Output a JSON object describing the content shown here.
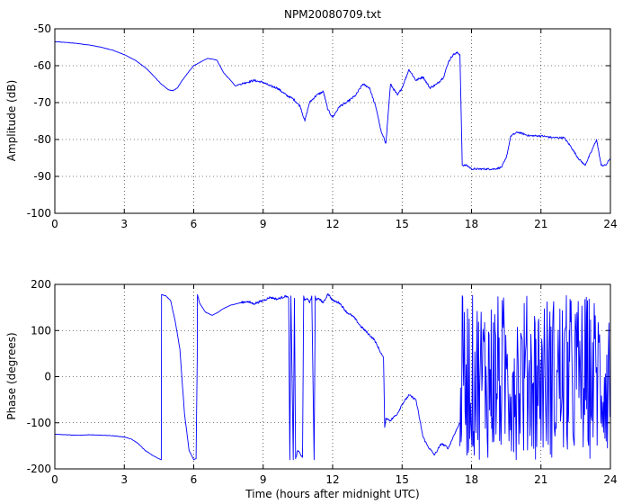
{
  "chart_data": [
    {
      "type": "line",
      "title": "NPM20080709.txt",
      "xlabel": "",
      "ylabel": "Amplitude (dB)",
      "xlim": [
        0,
        24
      ],
      "ylim": [
        -100,
        -50
      ],
      "xticks": [
        0,
        3,
        6,
        9,
        12,
        15,
        18,
        21,
        24
      ],
      "yticks": [
        -100,
        -90,
        -80,
        -70,
        -60,
        -50
      ],
      "grid": true,
      "line_color": "#0000ff",
      "series": [
        {
          "x": [
            0,
            0.5,
            1,
            1.5,
            2,
            2.5,
            3,
            3.5,
            4,
            4.3,
            4.6,
            4.9,
            5.1,
            5.3,
            5.5,
            5.8,
            6.0,
            6.3,
            6.6,
            7.0,
            7.3,
            7.6,
            7.8,
            8.0,
            8.3,
            8.6,
            9.0,
            9.3,
            9.6,
            10.0,
            10.3,
            10.6,
            10.8,
            11.0,
            11.3,
            11.6,
            11.8,
            12.0,
            12.3,
            12.6,
            13.0,
            13.3,
            13.6,
            13.9,
            14.1,
            14.3,
            14.5,
            14.8,
            15.0,
            15.3,
            15.6,
            15.9,
            16.2,
            16.5,
            16.8,
            17.0,
            17.2,
            17.4,
            17.5,
            17.6,
            17.8,
            18.0,
            18.5,
            19.0,
            19.3,
            19.5,
            19.7,
            20.0,
            20.5,
            21.0,
            21.5,
            22.0,
            22.3,
            22.6,
            22.9,
            23.2,
            23.4,
            23.6,
            23.8,
            24.0
          ],
          "y": [
            -53.5,
            -53.7,
            -54,
            -54.4,
            -55,
            -55.8,
            -57,
            -58.6,
            -61,
            -63,
            -65,
            -66.5,
            -66.8,
            -66,
            -64,
            -61.5,
            -60,
            -59,
            -58,
            -58.5,
            -62,
            -64,
            -65.5,
            -65,
            -64.5,
            -64,
            -64.5,
            -65.5,
            -66,
            -68,
            -69,
            -71,
            -75,
            -70,
            -68,
            -67,
            -72,
            -74,
            -71,
            -70,
            -68,
            -65,
            -66,
            -72,
            -78,
            -81,
            -65,
            -68,
            -66,
            -61,
            -64,
            -63,
            -66,
            -65,
            -63,
            -59,
            -57,
            -56.5,
            -57,
            -87,
            -87,
            -88,
            -88,
            -88,
            -87.5,
            -85,
            -79,
            -78,
            -79,
            -79,
            -79.5,
            -79.5,
            -82,
            -85,
            -87,
            -83,
            -80,
            -87,
            -87,
            -85
          ]
        }
      ]
    },
    {
      "type": "line",
      "title": "",
      "xlabel": "Time (hours after midnight UTC)",
      "ylabel": "Phase (degrees)",
      "xlim": [
        0,
        24
      ],
      "ylim": [
        -200,
        200
      ],
      "xticks": [
        0,
        3,
        6,
        9,
        12,
        15,
        18,
        21,
        24
      ],
      "yticks": [
        -200,
        -100,
        0,
        100,
        200
      ],
      "grid": true,
      "line_color": "#0000ff",
      "series": [
        {
          "x": [
            0,
            0.5,
            1,
            1.5,
            2,
            2.5,
            3,
            3.3,
            3.6,
            3.9,
            4.2,
            4.5,
            4.6,
            4.61,
            4.8,
            5.0,
            5.2,
            5.4,
            5.6,
            5.8,
            6.0,
            6.1,
            6.15,
            6.16,
            6.25,
            6.5,
            6.8,
            7.0,
            7.3,
            7.6,
            8.0,
            8.3,
            8.6,
            9.0,
            9.3,
            9.6,
            10.0,
            10.1,
            10.15,
            10.2,
            10.3,
            10.35,
            10.4,
            10.5,
            10.7,
            10.75,
            10.8,
            10.9,
            11.0,
            11.1,
            11.2,
            11.25,
            11.3,
            11.4,
            11.6,
            11.8,
            12.0,
            12.3,
            12.6,
            12.9,
            13.2,
            13.5,
            13.8,
            14.0,
            14.2,
            14.25,
            14.3,
            14.5,
            14.8,
            15.0,
            15.3,
            15.6,
            15.9,
            16.1,
            16.4,
            16.7,
            17.0,
            17.3,
            17.5
          ],
          "y": [
            -125,
            -126,
            -127,
            -126,
            -127,
            -128,
            -131,
            -135,
            -145,
            -160,
            -170,
            -178,
            -180,
            178,
            175,
            165,
            120,
            60,
            -80,
            -160,
            -180,
            -178,
            40,
            178,
            160,
            140,
            133,
            138,
            148,
            155,
            160,
            163,
            158,
            165,
            172,
            168,
            175,
            170,
            -180,
            175,
            -180,
            170,
            -178,
            -160,
            -175,
            175,
            165,
            170,
            160,
            175,
            -180,
            175,
            165,
            170,
            160,
            180,
            165,
            160,
            140,
            130,
            110,
            95,
            80,
            60,
            40,
            -110,
            -90,
            -95,
            -80,
            -60,
            -40,
            -50,
            -130,
            -150,
            -170,
            -145,
            -155,
            -120,
            -100
          ]
        },
        {
          "name": "",
          "noise": true,
          "x_start": 17.5,
          "x_end": 24.0,
          "y_min": -180,
          "y_max": 180
        }
      ]
    }
  ]
}
